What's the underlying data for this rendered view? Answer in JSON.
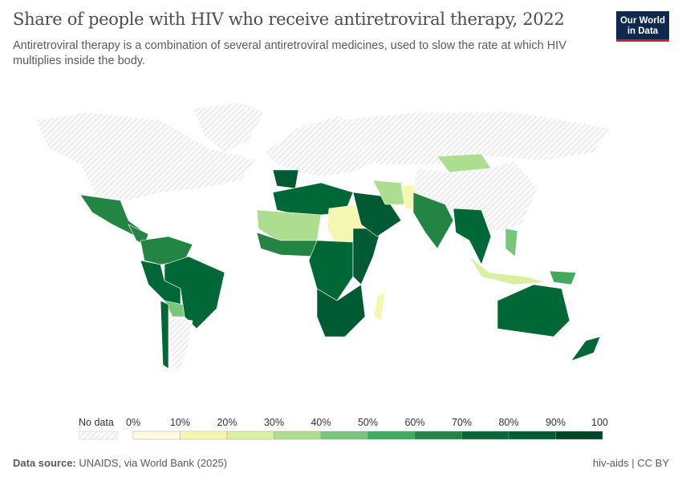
{
  "header": {
    "title": "Share of people with HIV who receive antiretroviral therapy, 2022",
    "subtitle": "Antiretroviral therapy is a combination of several antiretroviral medicines, used to slow the rate at which HIV multiplies inside the body.",
    "logo_line1": "Our World",
    "logo_line2": "in Data"
  },
  "legend": {
    "no_data_label": "No data",
    "ticks": [
      "0%",
      "10%",
      "20%",
      "30%",
      "40%",
      "50%",
      "60%",
      "70%",
      "80%",
      "90%",
      "100%"
    ],
    "bins": [
      {
        "range": "0-10%",
        "color": "#fefbe0"
      },
      {
        "range": "10-20%",
        "color": "#f3f7b0"
      },
      {
        "range": "20-30%",
        "color": "#d9efa2"
      },
      {
        "range": "30-40%",
        "color": "#addd8e"
      },
      {
        "range": "40-50%",
        "color": "#78c679"
      },
      {
        "range": "50-60%",
        "color": "#41ab5d"
      },
      {
        "range": "60-70%",
        "color": "#238443"
      },
      {
        "range": "70-80%",
        "color": "#006837"
      },
      {
        "range": "80-90%",
        "color": "#005a32"
      },
      {
        "range": "90-100%",
        "color": "#004529"
      }
    ]
  },
  "map": {
    "regions": [
      {
        "name": "north-america",
        "share": null
      },
      {
        "name": "greenland",
        "share": null
      },
      {
        "name": "mexico",
        "share": 65
      },
      {
        "name": "central-america",
        "share": 60
      },
      {
        "name": "colombia-venezuela",
        "share": 65
      },
      {
        "name": "brazil",
        "share": 70
      },
      {
        "name": "peru-bolivia",
        "share": 75
      },
      {
        "name": "paraguay",
        "share": 45
      },
      {
        "name": "argentina",
        "share": null
      },
      {
        "name": "chile",
        "share": 70
      },
      {
        "name": "europe",
        "share": null
      },
      {
        "name": "iberia",
        "share": 80
      },
      {
        "name": "northwest-africa",
        "share": 70
      },
      {
        "name": "sahel",
        "share": 35
      },
      {
        "name": "sudan",
        "share": 15
      },
      {
        "name": "west-africa",
        "share": 60
      },
      {
        "name": "central-africa",
        "share": 75
      },
      {
        "name": "east-africa",
        "share": 85
      },
      {
        "name": "southern-africa",
        "share": 88
      },
      {
        "name": "madagascar",
        "share": 15
      },
      {
        "name": "arabia",
        "share": 80
      },
      {
        "name": "iran",
        "share": 30
      },
      {
        "name": "afghanistan-pakistan",
        "share": 12
      },
      {
        "name": "russia",
        "share": null
      },
      {
        "name": "mongolia",
        "share": 35
      },
      {
        "name": "china",
        "share": null
      },
      {
        "name": "india",
        "share": 60
      },
      {
        "name": "southeast-asia",
        "share": 75
      },
      {
        "name": "indonesia",
        "share": 25
      },
      {
        "name": "philippines",
        "share": 40
      },
      {
        "name": "png",
        "share": 55
      },
      {
        "name": "australia",
        "share": 75
      },
      {
        "name": "new-zealand",
        "share": 78
      }
    ]
  },
  "footer": {
    "source_label": "Data source:",
    "source_text": "UNAIDS, via World Bank (2025)",
    "license": "hiv-aids | CC BY"
  }
}
